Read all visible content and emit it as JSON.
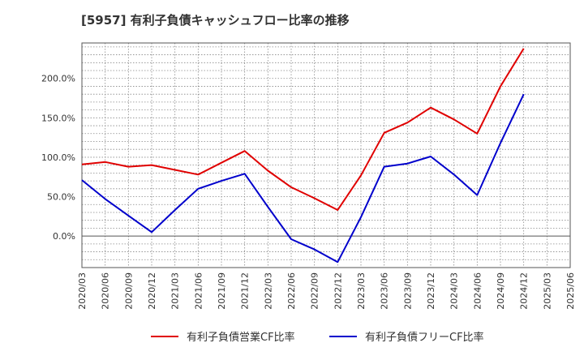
{
  "chart_data": {
    "type": "line",
    "title": "[5957]  有利子負債キャッシュフロー比率の推移",
    "xlabel": "",
    "ylabel": "",
    "x": [
      "2020/03",
      "2020/06",
      "2020/09",
      "2020/12",
      "2021/03",
      "2021/06",
      "2021/09",
      "2021/12",
      "2022/03",
      "2022/06",
      "2022/09",
      "2022/12",
      "2023/03",
      "2023/06",
      "2023/09",
      "2023/12",
      "2024/03",
      "2024/06",
      "2024/09",
      "2024/12",
      "2025/03",
      "2025/06"
    ],
    "yticks": [
      0,
      50,
      100,
      150,
      200
    ],
    "ytick_labels": [
      "0.0%",
      "50.0%",
      "100.0%",
      "150.0%",
      "200.0%"
    ],
    "ylim": [
      -40,
      245
    ],
    "grid": true,
    "legend_position": "bottom",
    "series": [
      {
        "name": "有利子負債営業CF比率",
        "color": "#e00000",
        "values": [
          91,
          94,
          88,
          90,
          84,
          78,
          93,
          108,
          83,
          62,
          48,
          33,
          77,
          131,
          144,
          163,
          148,
          130,
          190,
          238,
          null,
          null
        ]
      },
      {
        "name": "有利子負債フリーCF比率",
        "color": "#0000cc",
        "values": [
          71,
          47,
          26,
          5,
          33,
          60,
          70,
          79,
          37,
          -4,
          -17,
          -33,
          24,
          88,
          92,
          101,
          78,
          52,
          118,
          180,
          null,
          null
        ]
      }
    ]
  }
}
